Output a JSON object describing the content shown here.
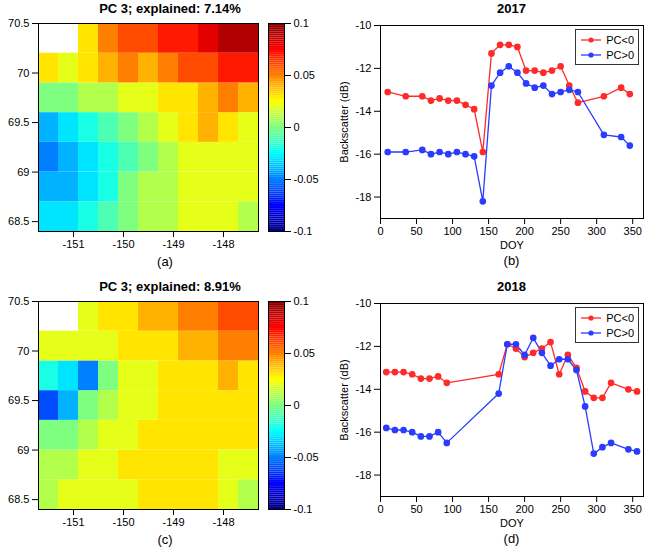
{
  "chart_data": [
    {
      "type": "heatmap",
      "title": "PC 3; explained: 7.14%",
      "caption": "(a)",
      "color": "jet",
      "xlim": [
        -151.7,
        -147.3
      ],
      "ylim": [
        68.4,
        70.5
      ],
      "xticks": [
        -151,
        -150,
        -149,
        -148
      ],
      "yticks": [
        68.5,
        69,
        69.5,
        70,
        70.5
      ],
      "x_edges": [
        -151.7,
        -151.3,
        -150.9,
        -150.5,
        -150.1,
        -149.7,
        -149.3,
        -148.9,
        -148.5,
        -148.1,
        -147.7,
        -147.3
      ],
      "y_edges": [
        68.4,
        68.7,
        69.0,
        69.3,
        69.6,
        69.9,
        70.2,
        70.5
      ],
      "cells": [
        [
          -0.03,
          -0.03,
          -0.02,
          -0.01,
          0.0,
          0.01,
          0.01,
          0.02,
          0.02,
          0.02,
          0.01
        ],
        [
          -0.04,
          -0.04,
          -0.03,
          -0.02,
          0.0,
          0.01,
          0.01,
          0.02,
          0.02,
          0.02,
          0.02
        ],
        [
          -0.05,
          -0.04,
          -0.03,
          -0.02,
          -0.01,
          0.0,
          0.01,
          0.02,
          0.02,
          0.02,
          0.02
        ],
        [
          -0.04,
          -0.03,
          -0.02,
          -0.01,
          0.0,
          0.01,
          0.02,
          0.03,
          0.04,
          0.03,
          0.02
        ],
        [
          0.0,
          0.0,
          0.01,
          0.01,
          0.02,
          0.02,
          0.03,
          0.03,
          0.04,
          0.05,
          0.04
        ],
        [
          0.03,
          0.02,
          0.03,
          0.04,
          0.05,
          0.04,
          0.05,
          0.06,
          0.06,
          0.07,
          0.07
        ],
        [
          null,
          null,
          0.03,
          0.05,
          0.06,
          0.06,
          0.07,
          0.07,
          0.08,
          0.09,
          0.09
        ]
      ],
      "colorbar": {
        "range": [
          -0.1,
          0.1
        ],
        "ticks": [
          -0.1,
          -0.05,
          0,
          0.05,
          0.1
        ]
      }
    },
    {
      "type": "line",
      "title": "2017",
      "caption": "(b)",
      "x_label": "DOY",
      "y_label": "Backscatter (dB)",
      "xlim": [
        0,
        365
      ],
      "xticks": [
        0,
        50,
        100,
        150,
        200,
        250,
        300,
        350
      ],
      "ylim": [
        -19,
        -10
      ],
      "yticks": [
        -18,
        -16,
        -14,
        -12,
        -10
      ],
      "legend": "top-right",
      "marker": "circle",
      "series": [
        {
          "name": "PC<0",
          "color": "#ff2a2a",
          "x": [
            10,
            35,
            58,
            70,
            82,
            94,
            106,
            118,
            130,
            142,
            154,
            166,
            178,
            190,
            202,
            214,
            226,
            238,
            250,
            262,
            274,
            310,
            334,
            346
          ],
          "values": [
            -13.1,
            -13.3,
            -13.3,
            -13.5,
            -13.4,
            -13.5,
            -13.5,
            -13.7,
            -13.9,
            -15.9,
            -11.3,
            -10.9,
            -10.9,
            -11.0,
            -12.1,
            -12.1,
            -12.2,
            -12.1,
            -11.9,
            -12.8,
            -13.6,
            -13.3,
            -12.9,
            -13.2
          ]
        },
        {
          "name": "PC>0",
          "color": "#2a3cff",
          "x": [
            10,
            35,
            58,
            70,
            82,
            94,
            106,
            118,
            130,
            142,
            154,
            166,
            178,
            190,
            202,
            214,
            226,
            238,
            250,
            262,
            274,
            310,
            334,
            346
          ],
          "values": [
            -15.9,
            -15.9,
            -15.8,
            -16.0,
            -15.9,
            -16.0,
            -15.9,
            -16.0,
            -16.1,
            -18.2,
            -12.8,
            -12.2,
            -11.9,
            -12.2,
            -12.7,
            -12.9,
            -12.8,
            -13.2,
            -13.1,
            -13.0,
            -13.1,
            -15.1,
            -15.2,
            -15.6
          ]
        }
      ]
    },
    {
      "type": "heatmap",
      "title": "PC 3; explained: 8.91%",
      "caption": "(c)",
      "color": "jet",
      "xlim": [
        -151.7,
        -147.3
      ],
      "ylim": [
        68.4,
        70.5
      ],
      "xticks": [
        -151,
        -150,
        -149,
        -148
      ],
      "yticks": [
        68.5,
        69,
        69.5,
        70,
        70.5
      ],
      "x_edges": [
        -151.7,
        -151.3,
        -150.9,
        -150.5,
        -150.1,
        -149.7,
        -149.3,
        -148.9,
        -148.5,
        -148.1,
        -147.7,
        -147.3
      ],
      "y_edges": [
        68.4,
        68.7,
        69.0,
        69.3,
        69.6,
        69.9,
        70.2,
        70.5
      ],
      "cells": [
        [
          0.01,
          0.02,
          0.02,
          0.02,
          0.02,
          0.03,
          0.03,
          0.03,
          0.03,
          0.02,
          0.01
        ],
        [
          0.01,
          0.01,
          0.02,
          0.02,
          0.03,
          0.03,
          0.03,
          0.03,
          0.03,
          0.02,
          0.02
        ],
        [
          0.0,
          0.0,
          0.01,
          0.02,
          0.02,
          0.03,
          0.03,
          0.03,
          0.03,
          0.03,
          0.03
        ],
        [
          -0.06,
          -0.04,
          0.0,
          0.01,
          0.02,
          0.02,
          0.03,
          0.03,
          0.03,
          0.03,
          0.03
        ],
        [
          -0.02,
          -0.03,
          -0.05,
          0.0,
          0.02,
          0.02,
          0.03,
          0.03,
          0.03,
          0.04,
          0.03
        ],
        [
          0.02,
          0.02,
          0.02,
          0.02,
          0.03,
          0.03,
          0.03,
          0.04,
          0.04,
          0.05,
          0.05
        ],
        [
          null,
          null,
          0.02,
          0.03,
          0.03,
          0.04,
          0.04,
          0.05,
          0.05,
          0.06,
          0.06
        ]
      ],
      "colorbar": {
        "range": [
          -0.1,
          0.1
        ],
        "ticks": [
          -0.1,
          -0.05,
          0,
          0.05,
          0.1
        ]
      }
    },
    {
      "type": "line",
      "title": "2018",
      "caption": "(d)",
      "x_label": "DOY",
      "y_label": "Backscatter (dB)",
      "xlim": [
        0,
        365
      ],
      "xticks": [
        0,
        50,
        100,
        150,
        200,
        250,
        300,
        350
      ],
      "ylim": [
        -19,
        -10
      ],
      "yticks": [
        -18,
        -16,
        -14,
        -12,
        -10
      ],
      "legend": "top-right",
      "marker": "circle",
      "series": [
        {
          "name": "PC<0",
          "color": "#ff2a2a",
          "x": [
            8,
            20,
            32,
            44,
            56,
            68,
            80,
            92,
            164,
            176,
            188,
            200,
            212,
            224,
            236,
            248,
            260,
            272,
            284,
            296,
            308,
            320,
            344,
            356
          ],
          "values": [
            -13.2,
            -13.2,
            -13.2,
            -13.3,
            -13.5,
            -13.5,
            -13.4,
            -13.7,
            -13.3,
            -11.9,
            -12.1,
            -12.5,
            -12.3,
            -12.1,
            -11.8,
            -13.3,
            -12.4,
            -13.0,
            -14.1,
            -14.4,
            -14.4,
            -13.7,
            -14.0,
            -14.1
          ]
        },
        {
          "name": "PC>0",
          "color": "#2a3cff",
          "x": [
            8,
            20,
            32,
            44,
            56,
            68,
            80,
            92,
            164,
            176,
            188,
            200,
            212,
            224,
            236,
            248,
            260,
            272,
            284,
            296,
            308,
            320,
            344,
            356
          ],
          "values": [
            -15.8,
            -15.9,
            -15.9,
            -16.0,
            -16.2,
            -16.2,
            -16.0,
            -16.5,
            -14.2,
            -11.9,
            -11.9,
            -12.4,
            -11.6,
            -12.3,
            -12.9,
            -12.6,
            -12.6,
            -13.1,
            -14.8,
            -17.0,
            -16.7,
            -16.5,
            -16.8,
            -16.9
          ]
        }
      ]
    }
  ]
}
